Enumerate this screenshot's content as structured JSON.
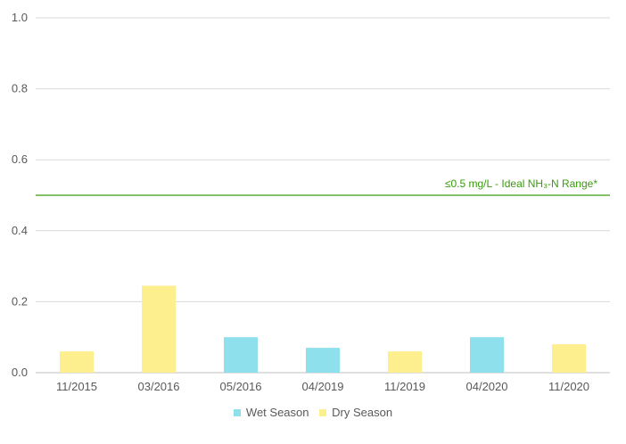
{
  "chart_data": {
    "type": "bar",
    "categories": [
      "11/2015",
      "03/2016",
      "05/2016",
      "04/2019",
      "11/2019",
      "04/2020",
      "11/2020"
    ],
    "values": [
      0.06,
      0.245,
      0.1,
      0.07,
      0.06,
      0.1,
      0.08
    ],
    "season": [
      "Dry Season",
      "Dry Season",
      "Wet Season",
      "Wet Season",
      "Dry Season",
      "Wet Season",
      "Dry Season"
    ],
    "ylim": [
      0,
      1.0
    ],
    "yticks": [
      "0.0",
      "0.2",
      "0.4",
      "0.6",
      "0.8",
      "1.0"
    ],
    "ytick_values": [
      0,
      0.2,
      0.4,
      0.6,
      0.8,
      1.0
    ],
    "grid": true,
    "reference_line": {
      "value": 0.5,
      "label": "≤0.5 mg/L - Ideal NH₃-N Range*",
      "color": "#3a9a10"
    },
    "legend": {
      "position": "bottom",
      "items": [
        {
          "name": "Wet Season",
          "color": "#8ee0ec"
        },
        {
          "name": "Dry Season",
          "color": "#fdee8e"
        }
      ]
    }
  }
}
